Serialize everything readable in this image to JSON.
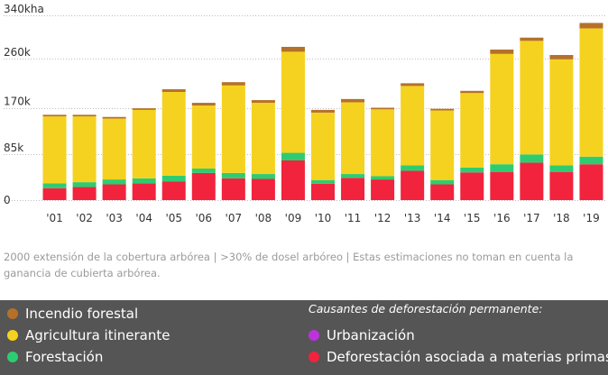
{
  "chart_data": {
    "type": "bar",
    "stacked": true,
    "y_unit_top_label": "340kha",
    "y_ticks": [
      "85k",
      "170k",
      "260k"
    ],
    "ylim": [
      0,
      340
    ],
    "y_unit": "kha",
    "categories": [
      "'01",
      "'02",
      "'03",
      "'04",
      "'05",
      "'06",
      "'07",
      "'08",
      "'09",
      "'10",
      "'11",
      "'12",
      "'13",
      "'14",
      "'15",
      "'16",
      "'17",
      "'18",
      "'19"
    ],
    "series": [
      {
        "name": "Deforestación asociada a materias primas",
        "color": "#f2233d",
        "values": [
          22,
          24,
          29,
          31,
          34,
          50,
          40,
          39,
          73,
          30,
          41,
          38,
          54,
          29,
          51,
          52,
          69,
          52,
          66
        ]
      },
      {
        "name": "Forestación",
        "color": "#2ecc71",
        "values": [
          9,
          9,
          9,
          9,
          11,
          8,
          10,
          9,
          14,
          7,
          7,
          6,
          10,
          8,
          9,
          14,
          15,
          12,
          14
        ]
      },
      {
        "name": "Agricultura itinerante",
        "color": "#f5d21f",
        "values": [
          123,
          121,
          112,
          126,
          154,
          116,
          161,
          131,
          186,
          124,
          132,
          123,
          146,
          128,
          137,
          203,
          209,
          195,
          236
        ]
      },
      {
        "name": "Incendio forestal",
        "color": "#b5712a",
        "values": [
          3,
          3,
          3,
          3,
          5,
          5,
          6,
          5,
          9,
          5,
          6,
          3,
          5,
          3,
          4,
          8,
          6,
          8,
          10
        ]
      },
      {
        "name": "Urbanización",
        "color": "#bb33dd",
        "values": [
          0,
          0,
          0,
          0,
          0,
          0,
          0,
          0,
          0,
          0,
          0,
          0,
          0,
          0,
          0,
          0,
          0,
          0,
          0
        ]
      }
    ]
  },
  "footnote": "2000 extensión de la cobertura arbórea | >30% de dosel arbóreo | Estas estimaciones no toman en cuenta la ganancia de cubierta arbórea.",
  "legend": {
    "heading": "Causantes de deforestación permanente:",
    "items": [
      {
        "label": "Incendio forestal",
        "color": "#b5712a"
      },
      {
        "label": "Agricultura itinerante",
        "color": "#f5d21f"
      },
      {
        "label": "Forestación",
        "color": "#2ecc71"
      },
      {
        "label": "Urbanización",
        "color": "#bb33dd"
      },
      {
        "label": "Deforestación asociada a materias primas",
        "color": "#f2233d"
      }
    ]
  }
}
